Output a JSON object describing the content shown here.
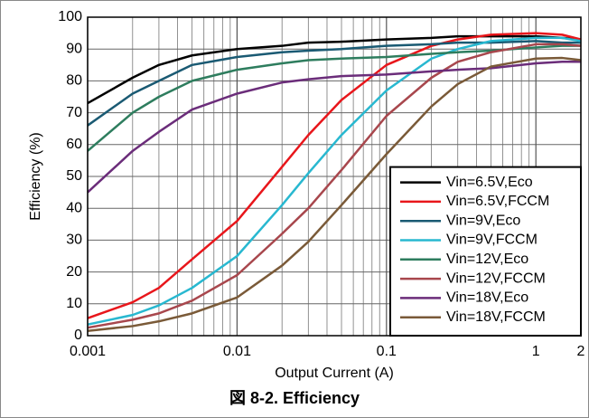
{
  "chart_data": {
    "type": "line",
    "caption": "図 8-2. Efficiency",
    "xlabel": "Output Current (A)",
    "ylabel": "Efficiency (%)",
    "x": [
      0.001,
      0.002,
      0.003,
      0.005,
      0.01,
      0.02,
      0.03,
      0.05,
      0.1,
      0.2,
      0.3,
      0.5,
      1,
      1.5,
      2
    ],
    "series": [
      {
        "name": "Vin=6.5V,Eco",
        "color": "#000000",
        "values": [
          73,
          81,
          85,
          88,
          90,
          91,
          92,
          92.3,
          93,
          93.5,
          94,
          94,
          94,
          93.5,
          93
        ]
      },
      {
        "name": "Vin=6.5V,FCCM",
        "color": "#e8161b",
        "values": [
          5.5,
          10.5,
          15,
          24,
          36,
          53,
          63,
          74,
          85,
          91,
          93,
          94.5,
          95,
          94.5,
          93
        ]
      },
      {
        "name": "Vin=9V,Eco",
        "color": "#1a5a73",
        "values": [
          66,
          76,
          80,
          85,
          87.5,
          89,
          89.5,
          90,
          91,
          91.5,
          92,
          92,
          92.5,
          92,
          92
        ]
      },
      {
        "name": "Vin=9V,FCCM",
        "color": "#28b8d0",
        "values": [
          3.5,
          6.5,
          9.5,
          15,
          25,
          41,
          51,
          63,
          77,
          87,
          90,
          92.5,
          93.5,
          93.5,
          92.5
        ]
      },
      {
        "name": "Vin=12V,Eco",
        "color": "#2e7d5e",
        "values": [
          58,
          70,
          75,
          80,
          83.5,
          85.5,
          86.5,
          87,
          87.5,
          88.5,
          89,
          89.5,
          90.5,
          91,
          91
        ]
      },
      {
        "name": "Vin=12V,FCCM",
        "color": "#a8474d",
        "values": [
          2.5,
          5,
          7,
          11,
          19,
          32,
          40,
          52,
          69,
          81,
          86,
          89,
          91.5,
          91.5,
          91
        ]
      },
      {
        "name": "Vin=18V,Eco",
        "color": "#6b2d7a",
        "values": [
          45,
          58,
          64,
          71,
          76,
          79.5,
          80.5,
          81.5,
          82,
          83,
          83.5,
          84,
          85.5,
          86,
          86
        ]
      },
      {
        "name": "Vin=18V,FCCM",
        "color": "#7a5a38",
        "values": [
          1.5,
          3,
          4.5,
          7,
          12,
          22,
          29.5,
          41,
          57,
          72,
          79,
          84.5,
          87,
          87.2,
          86.5
        ]
      }
    ],
    "xscale": "log",
    "xlim": [
      0.001,
      2
    ],
    "xticks": [
      0.001,
      0.01,
      0.1,
      1,
      2
    ],
    "ylim": [
      0,
      100
    ],
    "yticks": [
      0,
      10,
      20,
      30,
      40,
      50,
      60,
      70,
      80,
      90,
      100
    ],
    "grid": true,
    "minor_grid": true,
    "legend": "lower right"
  }
}
